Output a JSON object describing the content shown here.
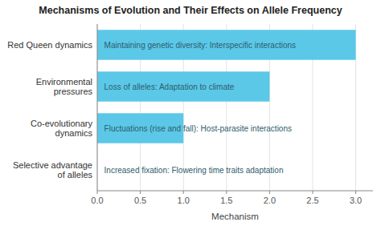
{
  "chart_data": {
    "type": "bar",
    "orientation": "horizontal",
    "title": "Mechanisms of Evolution and Their Effects on Allele Frequency",
    "xlabel": "Mechanism",
    "categories": [
      "Selective advantage of alleles",
      "Co-evolutionary dynamics",
      "Environmental pressures",
      "Red Queen dynamics"
    ],
    "values": [
      0,
      1,
      2,
      3
    ],
    "annotations": [
      "Increased fixation: Flowering time traits adaptation",
      "Fluctuations (rise and fall): Host-parasite interactions",
      "Loss of alleles: Adaptation to climate",
      "Maintaining genetic diversity: Interspecific interactions"
    ],
    "color": "#5bc8e8",
    "xlim": [
      0,
      3.2
    ],
    "xticks": [
      {
        "value": 0.0,
        "label": "0.0"
      },
      0.5,
      {
        "value": 1.0,
        "label": "1.0"
      },
      1.5,
      {
        "value": 2.0,
        "label": "2.0"
      },
      2.5,
      {
        "value": 3.0,
        "label": "3.0"
      }
    ],
    "grid": true
  }
}
